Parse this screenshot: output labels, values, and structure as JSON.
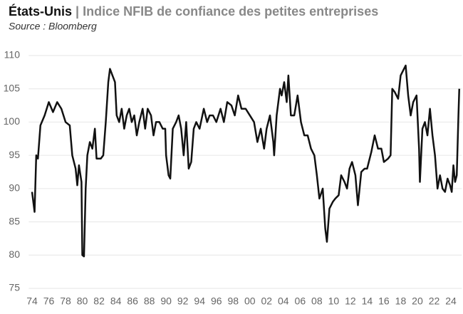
{
  "chart_data": {
    "type": "line",
    "title": {
      "country": "États-Unis",
      "separator": "|",
      "text": "Indice NFIB de confiance des petites entreprises"
    },
    "subtitle": "Source : Bloomberg",
    "x": [
      1974.0,
      1974.3,
      1974.5,
      1974.7,
      1975.0,
      1975.5,
      1976.0,
      1976.5,
      1977.0,
      1977.5,
      1978.0,
      1978.5,
      1978.8,
      1979.2,
      1979.4,
      1979.6,
      1979.9,
      1980.0,
      1980.2,
      1980.4,
      1980.6,
      1980.9,
      1981.2,
      1981.5,
      1981.7,
      1982.2,
      1982.5,
      1982.8,
      1983.1,
      1983.3,
      1983.6,
      1983.9,
      1984.1,
      1984.4,
      1984.7,
      1985.0,
      1985.3,
      1985.6,
      1985.9,
      1986.2,
      1986.5,
      1986.8,
      1987.2,
      1987.5,
      1987.8,
      1988.2,
      1988.5,
      1988.8,
      1989.2,
      1989.6,
      1989.9,
      1990.0,
      1990.3,
      1990.5,
      1990.8,
      1991.2,
      1991.5,
      1991.8,
      1992.1,
      1992.4,
      1992.7,
      1993.0,
      1993.3,
      1993.6,
      1994.0,
      1994.5,
      1994.9,
      1995.2,
      1995.6,
      1996.0,
      1996.5,
      1996.9,
      1997.3,
      1997.8,
      1998.2,
      1998.6,
      1999.0,
      1999.5,
      2000.0,
      2000.5,
      2000.9,
      2001.3,
      2001.7,
      2002.0,
      2002.4,
      2002.8,
      2002.9,
      2003.2,
      2003.6,
      2003.8,
      2004.1,
      2004.4,
      2004.6,
      2004.9,
      2005.3,
      2005.7,
      2006.1,
      2006.5,
      2006.9,
      2007.3,
      2007.7,
      2008.0,
      2008.3,
      2008.7,
      2009.0,
      2009.2,
      2009.5,
      2009.9,
      2010.2,
      2010.6,
      2010.9,
      2011.3,
      2011.6,
      2011.9,
      2012.2,
      2012.6,
      2012.9,
      2013.3,
      2013.7,
      2014.0,
      2014.5,
      2014.9,
      2015.3,
      2015.7,
      2016.0,
      2016.5,
      2016.8,
      2017.0,
      2017.3,
      2017.7,
      2018.0,
      2018.4,
      2018.6,
      2018.9,
      2019.2,
      2019.5,
      2019.9,
      2020.2,
      2020.3,
      2020.6,
      2020.9,
      2021.2,
      2021.5,
      2021.8,
      2022.1,
      2022.4,
      2022.7,
      2023.0,
      2023.3,
      2023.6,
      2023.9,
      2024.1,
      2024.3,
      2024.5,
      2024.7,
      2024.9,
      2025.0
    ],
    "series": [
      {
        "color": "#111111",
        "values": [
          89.5,
          86.5,
          95,
          94.5,
          99.5,
          101,
          103,
          101.5,
          103,
          102,
          100,
          99.5,
          95,
          93,
          90.5,
          93.5,
          91,
          80,
          79.8,
          90,
          95,
          97,
          96,
          99,
          94.5,
          94.5,
          95,
          100,
          106,
          108,
          107,
          106,
          101,
          100,
          102,
          99,
          101,
          102,
          100,
          101,
          98,
          100,
          102,
          99,
          102,
          101,
          98,
          100,
          100,
          99,
          99,
          95,
          92,
          91.5,
          99,
          100,
          101,
          99,
          95,
          100,
          93,
          94,
          99,
          100,
          99,
          102,
          100,
          101,
          101,
          100,
          102,
          100,
          103,
          102.5,
          101,
          104,
          102,
          102,
          101,
          100,
          97,
          99,
          96,
          99,
          101,
          97,
          95,
          101,
          105,
          104,
          106,
          103,
          107,
          101,
          101,
          104,
          100,
          98,
          98,
          96,
          95,
          92,
          88.5,
          90,
          84,
          82,
          87,
          88,
          88.5,
          89,
          92,
          91,
          90,
          93,
          94,
          92,
          87.5,
          92.5,
          93,
          93,
          95.5,
          98,
          96,
          96,
          94,
          94.5,
          95,
          105,
          104.5,
          103.5,
          107,
          108,
          108.5,
          104,
          101,
          103,
          104,
          96,
          91,
          99,
          100,
          98,
          102,
          98,
          95,
          90,
          92,
          90,
          89.5,
          91.5,
          90.5,
          89.5,
          93.5,
          91,
          92,
          101,
          105
        ]
      }
    ],
    "xlim": [
      1973.6,
      2025.3
    ],
    "xticks": [
      {
        "value": 1974,
        "label": "74"
      },
      {
        "value": 1976,
        "label": "76"
      },
      {
        "value": 1978,
        "label": "78"
      },
      {
        "value": 1980,
        "label": "80"
      },
      {
        "value": 1982,
        "label": "82"
      },
      {
        "value": 1984,
        "label": "84"
      },
      {
        "value": 1986,
        "label": "86"
      },
      {
        "value": 1988,
        "label": "88"
      },
      {
        "value": 1990,
        "label": "90"
      },
      {
        "value": 1992,
        "label": "92"
      },
      {
        "value": 1994,
        "label": "94"
      },
      {
        "value": 1996,
        "label": "96"
      },
      {
        "value": 1998,
        "label": "98"
      },
      {
        "value": 2000,
        "label": "00"
      },
      {
        "value": 2002,
        "label": "02"
      },
      {
        "value": 2004,
        "label": "04"
      },
      {
        "value": 2006,
        "label": "06"
      },
      {
        "value": 2008,
        "label": "08"
      },
      {
        "value": 2010,
        "label": "10"
      },
      {
        "value": 2012,
        "label": "12"
      },
      {
        "value": 2014,
        "label": "14"
      },
      {
        "value": 2016,
        "label": "16"
      },
      {
        "value": 2018,
        "label": "18"
      },
      {
        "value": 2020,
        "label": "20"
      },
      {
        "value": 2022,
        "label": "22"
      },
      {
        "value": 2024,
        "label": "24"
      }
    ],
    "ylim": [
      75,
      110
    ],
    "yticks": [
      75,
      80,
      85,
      90,
      95,
      100,
      105,
      110
    ],
    "grid": true
  }
}
